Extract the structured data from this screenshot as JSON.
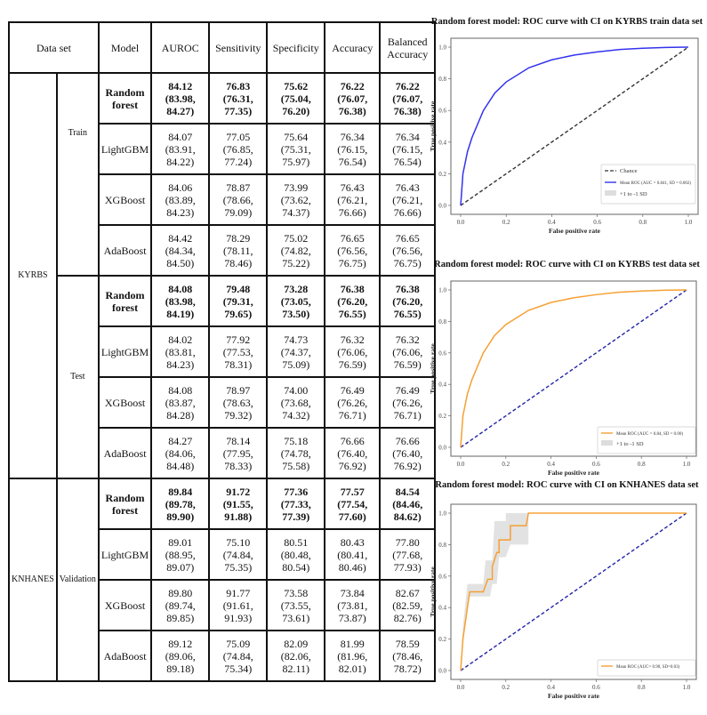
{
  "table": {
    "headers": {
      "dataset": "Data set",
      "model": "Model",
      "auroc": "AUROC",
      "sensitivity": "Sensitivity",
      "specificity": "Specificity",
      "accuracy": "Accuracy",
      "balanced_accuracy": "Balanced Accuracy"
    },
    "groups": [
      {
        "name": "KYRBS",
        "splits": [
          {
            "name": "Train",
            "rows": [
              {
                "model": "Random forest",
                "bold": true,
                "auroc": "84.12 (83.98, 84.27)",
                "sensitivity": "76.83 (76.31, 77.35)",
                "specificity": "75.62 (75.04, 76.20)",
                "accuracy": "76.22 (76.07, 76.38)",
                "balanced_accuracy": "76.22 (76.07, 76.38)"
              },
              {
                "model": "LightGBM",
                "bold": false,
                "auroc": "84.07 (83.91, 84.22)",
                "sensitivity": "77.05 (76.85, 77.24)",
                "specificity": "75.64 (75.31, 75.97)",
                "accuracy": "76.34 (76.15, 76.54)",
                "balanced_accuracy": "76.34 (76.15, 76.54)"
              },
              {
                "model": "XGBoost",
                "bold": false,
                "auroc": "84.06 (83.89, 84.23)",
                "sensitivity": "78.87 (78.66, 79.09)",
                "specificity": "73.99 (73.62, 74.37)",
                "accuracy": "76.43 (76.21, 76.66)",
                "balanced_accuracy": "76.43 (76.21, 76.66)"
              },
              {
                "model": "AdaBoost",
                "bold": false,
                "auroc": "84.42 (84.34, 84.50)",
                "sensitivity": "78.29 (78.11, 78.46)",
                "specificity": "75.02 (74.82, 75.22)",
                "accuracy": "76.65 (76.56, 76.75)",
                "balanced_accuracy": "76.65 (76.56, 76.75)"
              }
            ]
          },
          {
            "name": "Test",
            "rows": [
              {
                "model": "Random forest",
                "bold": true,
                "auroc": "84.08 (83.98, 84.19)",
                "sensitivity": "79.48 (79.31, 79.65)",
                "specificity": "73.28 (73.05, 73.50)",
                "accuracy": "76.38 (76.20, 76.55)",
                "balanced_accuracy": "76.38 (76.20, 76.55)"
              },
              {
                "model": "LightGBM",
                "bold": false,
                "auroc": "84.02 (83.81, 84.23)",
                "sensitivity": "77.92 (77.53, 78.31)",
                "specificity": "74.73 (74.37, 75.09)",
                "accuracy": "76.32 (76.06, 76.59)",
                "balanced_accuracy": "76.32 (76.06, 76.59)"
              },
              {
                "model": "XGBoost",
                "bold": false,
                "auroc": "84.08 (83.87, 84.28)",
                "sensitivity": "78.97 (78.63, 79.32)",
                "specificity": "74.00 (73.68, 74.32)",
                "accuracy": "76.49 (76.26, 76.71)",
                "balanced_accuracy": "76.49 (76.26, 76.71)"
              },
              {
                "model": "AdaBoost",
                "bold": false,
                "auroc": "84.27 (84.06, 84.48)",
                "sensitivity": "78.14 (77.95, 78.33)",
                "specificity": "75.18 (74.78, 75.58)",
                "accuracy": "76.66 (76.40, 76.92)",
                "balanced_accuracy": "76.66 (76.40, 76.92)"
              }
            ]
          }
        ]
      },
      {
        "name": "KNHANES",
        "splits": [
          {
            "name": "Validation",
            "rows": [
              {
                "model": "Random forest",
                "bold": true,
                "auroc": "89.84 (89.78, 89.90)",
                "sensitivity": "91.72 (91.55, 91.88)",
                "specificity": "77.36 (77.33, 77.39)",
                "accuracy": "77.57 (77.54, 77.60)",
                "balanced_accuracy": "84.54 (84.46, 84.62)"
              },
              {
                "model": "LightGBM",
                "bold": false,
                "auroc": "89.01 (88.95, 89.07)",
                "sensitivity": "75.10 (74.84, 75.35)",
                "specificity": "80.51 (80.48, 80.54)",
                "accuracy": "80.43 (80.41, 80.46)",
                "balanced_accuracy": "77.80 (77.68, 77.93)"
              },
              {
                "model": "XGBoost",
                "bold": false,
                "auroc": "89.80 (89.74, 89.85)",
                "sensitivity": "91.77 (91.61, 91.93)",
                "specificity": "73.58 (73.55, 73.61)",
                "accuracy": "73.84 (73.81, 73.87)",
                "balanced_accuracy": "82.67 (82.59, 82.76)"
              },
              {
                "model": "AdaBoost",
                "bold": false,
                "auroc": "89.12 (89.06, 89.18)",
                "sensitivity": "75.09 (74.84, 75.34)",
                "specificity": "82.09 (82.06, 82.11)",
                "accuracy": "81.99 (81.96, 82.01)",
                "balanced_accuracy": "78.59 (78.46, 78.72)"
              }
            ]
          }
        ]
      }
    ]
  },
  "chart_data": [
    {
      "type": "line",
      "title": "Random forest model: ROC curve with CI on KYRBS train data set",
      "xlabel": "False positive rate",
      "ylabel": "True positive rate",
      "xlim": [
        0,
        1
      ],
      "ylim": [
        0,
        1
      ],
      "xticks": [
        "0.0",
        "0.2",
        "0.4",
        "0.6",
        "0.8",
        "1.0"
      ],
      "yticks": [
        "0.0",
        "0.2",
        "0.4",
        "0.6",
        "0.8",
        "1.0"
      ],
      "legend_position": "lower right",
      "legend": [
        "Chance",
        "Mean ROC (AUC = 0.841, SD = 0.002)",
        "+1 to -1 SD"
      ],
      "series": [
        {
          "name": "Chance",
          "style": "dashed",
          "color": "#333333",
          "x": [
            0,
            1
          ],
          "y": [
            0,
            1
          ]
        },
        {
          "name": "Mean ROC (AUC = 0.841, SD = 0.002)",
          "color": "#3333ee",
          "x": [
            0,
            0.01,
            0.03,
            0.05,
            0.1,
            0.15,
            0.2,
            0.3,
            0.4,
            0.5,
            0.6,
            0.7,
            0.8,
            0.9,
            1.0
          ],
          "y": [
            0,
            0.2,
            0.34,
            0.43,
            0.6,
            0.71,
            0.78,
            0.87,
            0.92,
            0.95,
            0.97,
            0.985,
            0.993,
            0.998,
            1.0
          ]
        }
      ]
    },
    {
      "type": "line",
      "title": "Random forest model: ROC curve with CI on KYRBS test data set",
      "xlabel": "False positive rate",
      "ylabel": "True positive rate",
      "xlim": [
        0,
        1
      ],
      "ylim": [
        0,
        1
      ],
      "xticks": [
        "0.0",
        "0.2",
        "0.4",
        "0.6",
        "0.8",
        "1.0"
      ],
      "yticks": [
        "0.0",
        "0.2",
        "0.4",
        "0.6",
        "0.8",
        "1.0"
      ],
      "legend_position": "lower right",
      "legend": [
        "Mean ROC (AUC = 0.84, SD = 0.00)",
        "+1 to -1 SD"
      ],
      "series": [
        {
          "name": "Chance",
          "style": "dashed",
          "color": "#2222aa",
          "x": [
            0,
            1
          ],
          "y": [
            0,
            1
          ]
        },
        {
          "name": "Mean ROC (AUC = 0.84, SD = 0.00)",
          "color": "#f5a033",
          "x": [
            0,
            0.01,
            0.03,
            0.05,
            0.1,
            0.15,
            0.2,
            0.3,
            0.4,
            0.5,
            0.6,
            0.7,
            0.8,
            0.9,
            1.0
          ],
          "y": [
            0,
            0.2,
            0.34,
            0.43,
            0.6,
            0.71,
            0.78,
            0.87,
            0.92,
            0.95,
            0.97,
            0.985,
            0.993,
            0.998,
            1.0
          ]
        }
      ]
    },
    {
      "type": "line",
      "title": "Random forest model: ROC curve with CI on KNHANES data set",
      "xlabel": "False positive rate",
      "ylabel": "True positive rate",
      "xlim": [
        0,
        1
      ],
      "ylim": [
        0,
        1
      ],
      "xticks": [
        "0.0",
        "0.2",
        "0.4",
        "0.6",
        "0.8",
        "1.0"
      ],
      "yticks": [
        "0.0",
        "0.2",
        "0.4",
        "0.6",
        "0.8",
        "1.0"
      ],
      "legend_position": "lower right",
      "legend": [
        "Mean ROC (AUC= 0.90, SD=0.03)"
      ],
      "series": [
        {
          "name": "Chance",
          "style": "dashed",
          "color": "#2222aa",
          "x": [
            0,
            1
          ],
          "y": [
            0,
            1
          ]
        },
        {
          "name": "Mean ROC (AUC= 0.90, SD=0.03)",
          "color": "#f5a033",
          "style": "step",
          "x": [
            0,
            0.01,
            0.04,
            0.1,
            0.12,
            0.14,
            0.14,
            0.16,
            0.17,
            0.17,
            0.22,
            0.22,
            0.29,
            0.3,
            1.0
          ],
          "y": [
            0,
            0.2,
            0.5,
            0.5,
            0.58,
            0.58,
            0.66,
            0.75,
            0.75,
            0.83,
            0.83,
            0.92,
            0.92,
            1.0,
            1.0
          ]
        }
      ]
    }
  ]
}
